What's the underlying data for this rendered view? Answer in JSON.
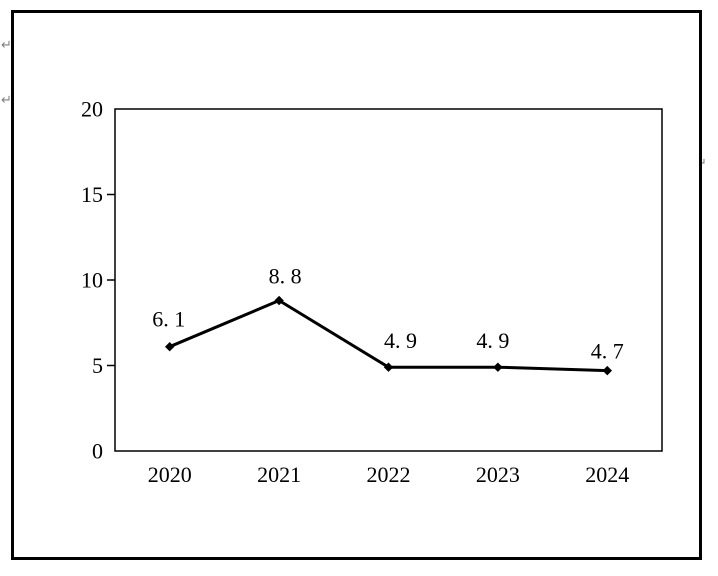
{
  "icons": {
    "paragraph_return": "↵"
  },
  "colors": {
    "background": "#ffffff",
    "document_border": "#000000",
    "line": "#000000",
    "axis": "#000000",
    "text": "#000000",
    "paragraph_mark": "#808080"
  },
  "chart_data": {
    "type": "line",
    "title": "",
    "xlabel": "",
    "ylabel": "",
    "categories": [
      "2020",
      "2021",
      "2022",
      "2023",
      "2024"
    ],
    "values": [
      6.1,
      8.8,
      4.9,
      4.9,
      4.7
    ],
    "point_labels": [
      "6. 1",
      "8. 8",
      "4. 9",
      "4. 9",
      "4. 7"
    ],
    "ylim": [
      0,
      20
    ],
    "yticks": [
      0,
      5,
      10,
      15,
      20
    ],
    "ytick_labels": [
      "0",
      "5",
      "10",
      "15",
      "20"
    ],
    "grid": false,
    "legend": "none",
    "marker": "diamond",
    "line_color": "#000000"
  }
}
